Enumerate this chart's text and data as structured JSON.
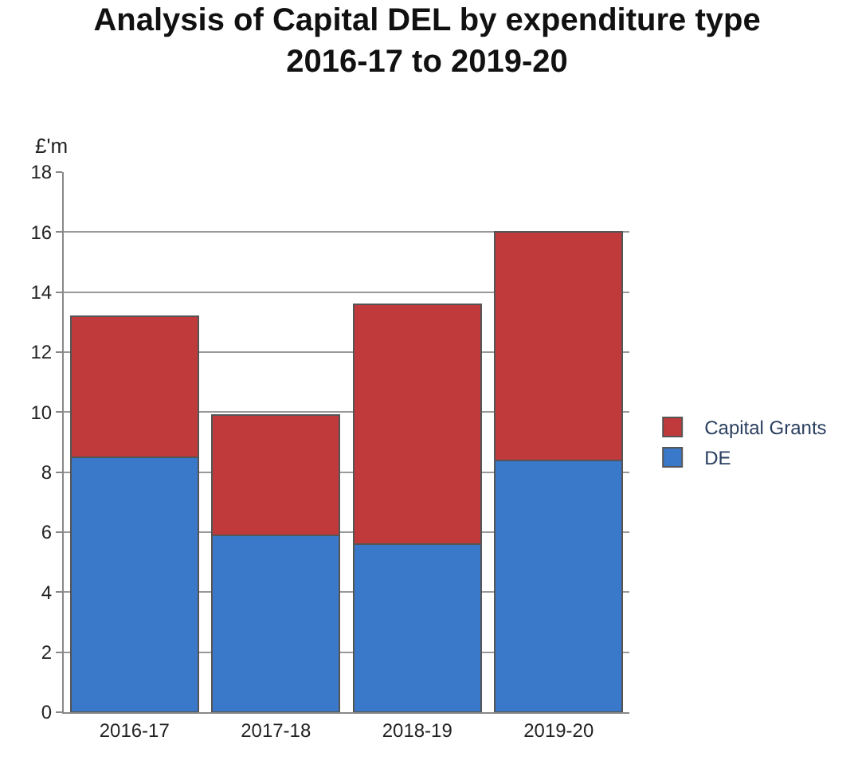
{
  "chart_data": {
    "type": "bar",
    "title": "Analysis of Capital DEL by expenditure type\n2016-17 to 2019-20",
    "ylabel": "£'m",
    "categories": [
      "2016-17",
      "2017-18",
      "2018-19",
      "2019-20"
    ],
    "stacked": true,
    "series": [
      {
        "name": "DE",
        "color": "#3a78c9",
        "values": [
          8.5,
          5.9,
          5.6,
          8.4
        ]
      },
      {
        "name": "Capital Grants",
        "color": "#c0393b",
        "values": [
          4.7,
          4.0,
          8.0,
          7.6
        ]
      }
    ],
    "ylim": [
      0,
      18
    ],
    "yticks": [
      0,
      2,
      4,
      6,
      8,
      10,
      12,
      14,
      16,
      18
    ],
    "grid": "y",
    "legend": "right"
  }
}
